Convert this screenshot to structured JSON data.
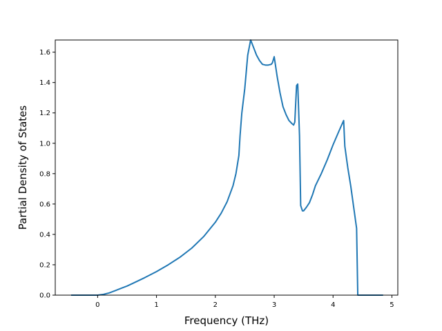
{
  "chart_data": {
    "type": "line",
    "title": "",
    "xlabel": "Frequency (THz)",
    "ylabel": "Partial Density of States",
    "xlim": [
      -0.72,
      5.1
    ],
    "ylim": [
      0.0,
      1.68
    ],
    "x_ticks": [
      0,
      1,
      2,
      3,
      4,
      5
    ],
    "y_ticks": [
      0.0,
      0.2,
      0.4,
      0.6,
      0.8,
      1.0,
      1.2,
      1.4,
      1.6
    ],
    "x_tick_labels": [
      "0",
      "1",
      "2",
      "3",
      "4",
      "5"
    ],
    "y_tick_labels": [
      "0.0",
      "0.2",
      "0.4",
      "0.6",
      "0.8",
      "1.0",
      "1.2",
      "1.4",
      "1.6"
    ],
    "grid": false,
    "legend": "none",
    "series": [
      {
        "color": "#1f77b4",
        "x": [
          -0.45,
          -0.2,
          0.0,
          0.1,
          0.2,
          0.3,
          0.4,
          0.5,
          0.6,
          0.8,
          1.0,
          1.2,
          1.4,
          1.6,
          1.8,
          2.0,
          2.1,
          2.2,
          2.3,
          2.35,
          2.4,
          2.42,
          2.45,
          2.5,
          2.55,
          2.6,
          2.65,
          2.7,
          2.75,
          2.8,
          2.85,
          2.9,
          2.95,
          2.97,
          3.0,
          3.05,
          3.1,
          3.15,
          3.2,
          3.25,
          3.3,
          3.33,
          3.35,
          3.38,
          3.4,
          3.43,
          3.45,
          3.48,
          3.5,
          3.55,
          3.6,
          3.65,
          3.7,
          3.8,
          3.9,
          4.0,
          4.1,
          4.18,
          4.2,
          4.25,
          4.3,
          4.35,
          4.4,
          4.42,
          4.5,
          4.7,
          4.85
        ],
        "values": [
          0.0,
          0.0,
          0.0,
          0.005,
          0.015,
          0.03,
          0.045,
          0.06,
          0.078,
          0.115,
          0.155,
          0.2,
          0.25,
          0.31,
          0.385,
          0.48,
          0.54,
          0.615,
          0.72,
          0.8,
          0.92,
          1.05,
          1.2,
          1.36,
          1.58,
          1.68,
          1.63,
          1.58,
          1.545,
          1.52,
          1.515,
          1.515,
          1.52,
          1.53,
          1.57,
          1.44,
          1.33,
          1.24,
          1.19,
          1.15,
          1.13,
          1.12,
          1.14,
          1.38,
          1.39,
          1.05,
          0.59,
          0.555,
          0.555,
          0.58,
          0.61,
          0.66,
          0.72,
          0.8,
          0.89,
          0.99,
          1.08,
          1.15,
          0.98,
          0.84,
          0.72,
          0.58,
          0.44,
          0.0,
          0.0,
          0.0,
          0.0
        ]
      }
    ]
  }
}
